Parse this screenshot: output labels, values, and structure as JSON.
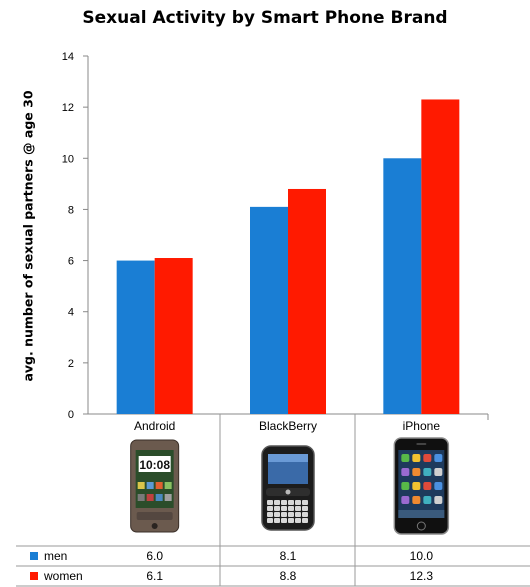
{
  "chart_data": {
    "type": "bar",
    "title": "Sexual Activity by Smart Phone Brand",
    "xlabel": "",
    "ylabel": "avg. number of sexual partners @ age 30",
    "ylim": [
      0,
      14
    ],
    "yticks": [
      "0",
      "2",
      "4",
      "6",
      "8",
      "10",
      "12",
      "14"
    ],
    "categories": [
      "Android",
      "BlackBerry",
      "iPhone"
    ],
    "series": [
      {
        "name": "men",
        "color": "#1a7ed4",
        "values": [
          6.0,
          8.1,
          10.0
        ],
        "labels": [
          "6.0",
          "8.1",
          "10.0"
        ]
      },
      {
        "name": "women",
        "color": "#ff1a00",
        "values": [
          6.1,
          8.8,
          12.3
        ],
        "labels": [
          "6.1",
          "8.8",
          "12.3"
        ]
      }
    ],
    "grid": false,
    "legend": "data-table",
    "images": [
      "android-phone-icon",
      "blackberry-phone-icon",
      "iphone-icon"
    ]
  }
}
